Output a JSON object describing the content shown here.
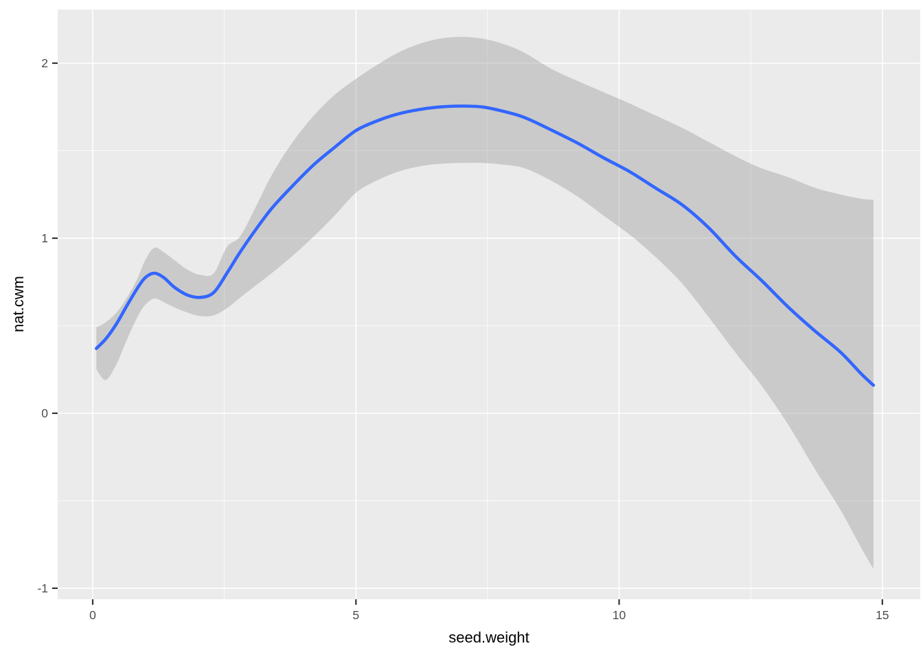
{
  "chart_data": {
    "type": "line",
    "title": "",
    "xlabel": "seed.weight",
    "ylabel": "nat.cwm",
    "legend_position": "none",
    "grid": true,
    "x_range": [
      -0.665,
      15.72
    ],
    "y_range": [
      -1.063,
      2.306
    ],
    "x_ticks_major": [
      0,
      5,
      10,
      15
    ],
    "x_ticks_minor": [
      2.5,
      7.5,
      12.5
    ],
    "y_ticks_major": [
      -1,
      0,
      1,
      2
    ],
    "y_ticks_minor": [
      -0.5,
      0.5,
      1.5
    ],
    "series": [
      {
        "name": "gam-smooth",
        "description": "smoothed fit of nat.cwm vs seed.weight with confidence ribbon; points are [x, y, ymin, ymax]",
        "points": [
          [
            0.07,
            0.37,
            0.25,
            0.49
          ],
          [
            0.25,
            0.425,
            0.19,
            0.52
          ],
          [
            0.45,
            0.51,
            0.28,
            0.575
          ],
          [
            0.65,
            0.615,
            0.42,
            0.66
          ],
          [
            0.85,
            0.715,
            0.55,
            0.77
          ],
          [
            1.0,
            0.775,
            0.62,
            0.875
          ],
          [
            1.17,
            0.8,
            0.655,
            0.945
          ],
          [
            1.35,
            0.775,
            0.635,
            0.92
          ],
          [
            1.55,
            0.72,
            0.605,
            0.875
          ],
          [
            1.8,
            0.675,
            0.575,
            0.82
          ],
          [
            2.05,
            0.662,
            0.555,
            0.79
          ],
          [
            2.3,
            0.69,
            0.56,
            0.8
          ],
          [
            2.55,
            0.8,
            0.6,
            0.95
          ],
          [
            2.8,
            0.92,
            0.66,
            1.01
          ],
          [
            3.1,
            1.05,
            0.73,
            1.18
          ],
          [
            3.4,
            1.17,
            0.8,
            1.36
          ],
          [
            3.8,
            1.3,
            0.9,
            1.55
          ],
          [
            4.2,
            1.42,
            1.01,
            1.7
          ],
          [
            4.6,
            1.52,
            1.13,
            1.82
          ],
          [
            5.0,
            1.615,
            1.26,
            1.91
          ],
          [
            5.4,
            1.67,
            1.33,
            1.99
          ],
          [
            5.8,
            1.71,
            1.38,
            2.06
          ],
          [
            6.2,
            1.735,
            1.41,
            2.11
          ],
          [
            6.6,
            1.75,
            1.425,
            2.14
          ],
          [
            7.0,
            1.755,
            1.43,
            2.15
          ],
          [
            7.4,
            1.75,
            1.43,
            2.14
          ],
          [
            7.8,
            1.725,
            1.42,
            2.11
          ],
          [
            8.2,
            1.69,
            1.4,
            2.06
          ],
          [
            8.7,
            1.62,
            1.33,
            1.97
          ],
          [
            9.2,
            1.545,
            1.24,
            1.9
          ],
          [
            9.7,
            1.46,
            1.13,
            1.835
          ],
          [
            10.2,
            1.38,
            1.02,
            1.77
          ],
          [
            10.7,
            1.285,
            0.89,
            1.7
          ],
          [
            11.2,
            1.19,
            0.74,
            1.63
          ],
          [
            11.7,
            1.06,
            0.55,
            1.55
          ],
          [
            12.2,
            0.9,
            0.35,
            1.47
          ],
          [
            12.7,
            0.76,
            0.16,
            1.4
          ],
          [
            13.2,
            0.61,
            -0.06,
            1.35
          ],
          [
            13.7,
            0.475,
            -0.31,
            1.29
          ],
          [
            14.2,
            0.35,
            -0.55,
            1.25
          ],
          [
            14.6,
            0.225,
            -0.77,
            1.225
          ],
          [
            14.83,
            0.16,
            -0.89,
            1.22
          ]
        ]
      }
    ],
    "colors": {
      "line": "#3366FF",
      "ribbon": "#999999",
      "ribbon_opacity": 0.4,
      "panel_bg": "#EBEBEB",
      "grid": "#FFFFFF",
      "tick_text": "#4D4D4D",
      "tick_mark": "#333333",
      "title_text": "#000000",
      "outer_bg": "#FFFFFF"
    }
  }
}
